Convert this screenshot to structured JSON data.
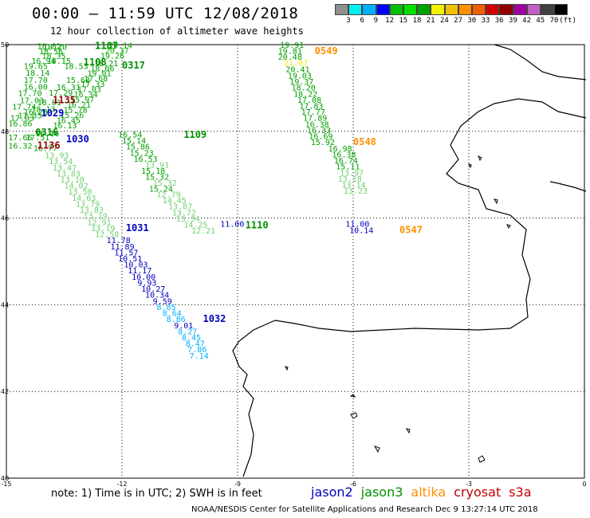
{
  "title": "00:00 – 11:59 UTC 12/08/2018",
  "subtitle": "12 hour collection of altimeter wave heights",
  "scale": {
    "unit": "(ft)",
    "colors": [
      "#909090",
      "#00f0f0",
      "#00b0ff",
      "#0000ff",
      "#00c000",
      "#00e000",
      "#00a000",
      "#f0f000",
      "#f0c000",
      "#ff9000",
      "#f06000",
      "#d00000",
      "#900000",
      "#a000a0",
      "#c060c0",
      "#404040",
      "#000000"
    ],
    "labels": [
      "3",
      "6",
      "9",
      "12",
      "15",
      "18",
      "21",
      "24",
      "27",
      "30",
      "33",
      "36",
      "39",
      "42",
      "45",
      "70"
    ]
  },
  "axes": {
    "x_labels": [
      "-15",
      "-12",
      "-9",
      "-6",
      "-3",
      "0"
    ],
    "y_labels": [
      "50",
      "48",
      "46",
      "44",
      "42",
      "40"
    ],
    "lon_range": [
      -15,
      0
    ],
    "lat_range": [
      40,
      50
    ]
  },
  "tracks": [
    {
      "pass": "1107",
      "pass_color": "#009000",
      "pass_lon": -12.7,
      "pass_lat": 49.9,
      "points": [
        {
          "v": "20.14",
          "lon": -12.35,
          "lat": 49.92,
          "c": "#00b000"
        },
        {
          "v": "20.37",
          "lon": -12.44,
          "lat": 49.8,
          "c": "#00b000"
        },
        {
          "v": "19.26",
          "lon": -12.56,
          "lat": 49.68,
          "c": "#00b000"
        },
        {
          "v": "18.21",
          "lon": -12.72,
          "lat": 49.5,
          "c": "#00a000"
        },
        {
          "v": "18.06",
          "lon": -12.82,
          "lat": 49.38,
          "c": "#00a000"
        },
        {
          "v": "19.01",
          "lon": -12.9,
          "lat": 49.27,
          "c": "#00a000"
        },
        {
          "v": "17.68",
          "lon": -12.99,
          "lat": 49.15,
          "c": "#00a000"
        },
        {
          "v": "17.33",
          "lon": -13.07,
          "lat": 49.03,
          "c": "#00a000"
        },
        {
          "v": "17.03",
          "lon": -13.16,
          "lat": 48.91,
          "c": "#00a000"
        },
        {
          "v": "16.34",
          "lon": -13.25,
          "lat": 48.79,
          "c": "#00a000"
        },
        {
          "v": "15.97",
          "lon": -13.34,
          "lat": 48.67,
          "c": "#00a000"
        },
        {
          "v": "16.21",
          "lon": -13.43,
          "lat": 48.55,
          "c": "#00a000"
        },
        {
          "v": "15.78",
          "lon": -13.52,
          "lat": 48.43,
          "c": "#00a000"
        },
        {
          "v": "15.26",
          "lon": -13.61,
          "lat": 48.31,
          "c": "#00a000"
        },
        {
          "v": "16.45",
          "lon": -13.7,
          "lat": 48.19,
          "c": "#00a000"
        },
        {
          "v": "16.13",
          "lon": -13.79,
          "lat": 48.07,
          "c": "#00a000"
        }
      ]
    },
    {
      "pass": "0317",
      "pass_color": "#009000",
      "pass_lon": -12.0,
      "pass_lat": 49.45,
      "points": [
        {
          "v": "18.82",
          "lon": -14.2,
          "lat": 49.9,
          "c": "#00a000"
        },
        {
          "v": "18.20",
          "lon": -14.05,
          "lat": 49.88,
          "c": "#00a000"
        },
        {
          "v": "18.56",
          "lon": -14.15,
          "lat": 49.78,
          "c": "#00a000"
        },
        {
          "v": "18.35",
          "lon": -14.08,
          "lat": 49.67,
          "c": "#00a000"
        },
        {
          "v": "16.94",
          "lon": -14.35,
          "lat": 49.56,
          "c": "#00a000"
        },
        {
          "v": "18.15",
          "lon": -13.95,
          "lat": 49.56,
          "c": "#00a000"
        },
        {
          "v": "19.65",
          "lon": -14.55,
          "lat": 49.44,
          "c": "#00a000"
        },
        {
          "v": "18.53",
          "lon": -13.5,
          "lat": 49.44,
          "c": "#00a000"
        },
        {
          "v": "18.14",
          "lon": -14.5,
          "lat": 49.28,
          "c": "#00a000"
        },
        {
          "v": "17.70",
          "lon": -14.55,
          "lat": 49.12,
          "c": "#00a000"
        },
        {
          "v": "16.00",
          "lon": -14.55,
          "lat": 48.96,
          "c": "#00a000"
        },
        {
          "v": "17.70",
          "lon": -14.7,
          "lat": 48.81,
          "c": "#00a000"
        },
        {
          "v": "17.03",
          "lon": -14.65,
          "lat": 48.65,
          "c": "#00a000"
        },
        {
          "v": "17.74",
          "lon": -14.85,
          "lat": 48.5,
          "c": "#00a000"
        },
        {
          "v": "16.86",
          "lon": -14.95,
          "lat": 48.12,
          "c": "#00a000"
        },
        {
          "v": "16.32",
          "lon": -14.95,
          "lat": 47.6,
          "c": "#00a000"
        }
      ]
    },
    {
      "pass": "1108",
      "pass_color": "#009000",
      "pass_lon": -13.0,
      "pass_lat": 49.52,
      "points": [
        {
          "v": "15.68",
          "lon": -13.45,
          "lat": 49.12,
          "c": "#00a000"
        },
        {
          "v": "16.31",
          "lon": -13.7,
          "lat": 48.95,
          "c": "#00a000"
        },
        {
          "v": "17.29",
          "lon": -13.9,
          "lat": 48.82,
          "c": "#00a000"
        },
        {
          "v": "18.01",
          "lon": -14.2,
          "lat": 48.6,
          "c": "#00a000"
        },
        {
          "v": "18.13",
          "lon": -14.35,
          "lat": 48.45,
          "c": "#00a000"
        },
        {
          "v": "16.28",
          "lon": -14.55,
          "lat": 48.38,
          "c": "#00a000"
        }
      ]
    },
    {
      "pass": "1109",
      "pass_color": "#009000",
      "pass_lon": -10.4,
      "pass_lat": 47.85,
      "points": [
        {
          "v": "16.54",
          "lon": -12.1,
          "lat": 47.86,
          "c": "#00a000"
        },
        {
          "v": "15.14",
          "lon": -12.0,
          "lat": 47.72,
          "c": "#00a000"
        },
        {
          "v": "15.86",
          "lon": -11.9,
          "lat": 47.58,
          "c": "#00a000"
        },
        {
          "v": "15.23",
          "lon": -11.8,
          "lat": 47.44,
          "c": "#00a000"
        },
        {
          "v": "16.53",
          "lon": -11.7,
          "lat": 47.3,
          "c": "#00a000"
        },
        {
          "v": "13.91",
          "lon": -11.4,
          "lat": 47.16,
          "c": "#70d070"
        },
        {
          "v": "15.18",
          "lon": -11.5,
          "lat": 47.02,
          "c": "#00a000"
        },
        {
          "v": "15.32",
          "lon": -11.4,
          "lat": 46.88,
          "c": "#00a000"
        },
        {
          "v": "15.32",
          "lon": -11.2,
          "lat": 46.75,
          "c": "#70d070"
        },
        {
          "v": "15.24",
          "lon": -11.3,
          "lat": 46.61,
          "c": "#00a000"
        },
        {
          "v": "12.79",
          "lon": -11.1,
          "lat": 46.48,
          "c": "#70d070"
        },
        {
          "v": "14.45",
          "lon": -10.95,
          "lat": 46.34,
          "c": "#70d070"
        },
        {
          "v": "13.87",
          "lon": -10.8,
          "lat": 46.2,
          "c": "#70d070"
        },
        {
          "v": "13.72",
          "lon": -10.7,
          "lat": 46.06,
          "c": "#70d070"
        },
        {
          "v": "13.34",
          "lon": -10.6,
          "lat": 45.92,
          "c": "#70d070"
        },
        {
          "v": "14.25",
          "lon": -10.4,
          "lat": 45.78,
          "c": "#70d070"
        },
        {
          "v": "12.21",
          "lon": -10.2,
          "lat": 45.64,
          "c": "#70d070"
        }
      ]
    },
    {
      "pass": "1110",
      "pass_color": "#009000",
      "pass_lon": -8.8,
      "pass_lat": 45.76,
      "points": []
    },
    {
      "pass": "0549",
      "pass_color": "#ff9000",
      "pass_lon": -7.0,
      "pass_lat": 49.78,
      "points": [
        {
          "v": "19.91",
          "lon": -7.9,
          "lat": 49.93,
          "c": "#00a000"
        },
        {
          "v": "19.81",
          "lon": -7.95,
          "lat": 49.79,
          "c": "#00a000"
        },
        {
          "v": "20.48",
          "lon": -7.95,
          "lat": 49.65,
          "c": "#00a000"
        },
        {
          "v": "21.07",
          "lon": -7.8,
          "lat": 49.51,
          "c": "#f0f000"
        },
        {
          "v": "20.41",
          "lon": -7.75,
          "lat": 49.37,
          "c": "#00a000"
        },
        {
          "v": "19.03",
          "lon": -7.7,
          "lat": 49.22,
          "c": "#00a000"
        },
        {
          "v": "19.37",
          "lon": -7.65,
          "lat": 49.08,
          "c": "#00a000"
        },
        {
          "v": "18.20",
          "lon": -7.6,
          "lat": 48.94,
          "c": "#00a000"
        },
        {
          "v": "18.22",
          "lon": -7.55,
          "lat": 48.8,
          "c": "#00a000"
        },
        {
          "v": "17.08",
          "lon": -7.45,
          "lat": 48.66,
          "c": "#00a000"
        },
        {
          "v": "17.83",
          "lon": -7.4,
          "lat": 48.52,
          "c": "#00a000"
        },
        {
          "v": "17.77",
          "lon": -7.35,
          "lat": 48.38,
          "c": "#00a000"
        },
        {
          "v": "17.89",
          "lon": -7.3,
          "lat": 48.24,
          "c": "#00a000"
        },
        {
          "v": "16.38",
          "lon": -7.25,
          "lat": 48.1,
          "c": "#00a000"
        },
        {
          "v": "16.33",
          "lon": -7.2,
          "lat": 47.96,
          "c": "#00a000"
        },
        {
          "v": "16.69",
          "lon": -7.15,
          "lat": 47.82,
          "c": "#00a000"
        },
        {
          "v": "15.92",
          "lon": -7.1,
          "lat": 47.68,
          "c": "#00a000"
        }
      ]
    },
    {
      "pass": "0548",
      "pass_color": "#ff9000",
      "pass_lon": -6.0,
      "pass_lat": 47.68,
      "points": [
        {
          "v": "16.98",
          "lon": -6.65,
          "lat": 47.54,
          "c": "#00a000"
        },
        {
          "v": "16.38",
          "lon": -6.55,
          "lat": 47.4,
          "c": "#00a000"
        },
        {
          "v": "16.74",
          "lon": -6.5,
          "lat": 47.26,
          "c": "#00a000"
        },
        {
          "v": "15.11",
          "lon": -6.45,
          "lat": 47.12,
          "c": "#00a000"
        },
        {
          "v": "13.97",
          "lon": -6.35,
          "lat": 46.98,
          "c": "#70d070"
        },
        {
          "v": "13.18",
          "lon": -6.4,
          "lat": 46.84,
          "c": "#70d070"
        },
        {
          "v": "13.14",
          "lon": -6.3,
          "lat": 46.7,
          "c": "#70d070"
        },
        {
          "v": "13.23",
          "lon": -6.25,
          "lat": 46.56,
          "c": "#70d070"
        }
      ]
    },
    {
      "pass": "0547",
      "pass_color": "#ff9000",
      "pass_lon": -4.8,
      "pass_lat": 45.65,
      "points": [
        {
          "v": "11.00",
          "lon": -6.2,
          "lat": 45.8,
          "c": "#0000c0"
        },
        {
          "v": "10.14",
          "lon": -6.1,
          "lat": 45.65,
          "c": "#0000c0"
        }
      ]
    },
    {
      "pass": "1029",
      "pass_color": "#0000c0",
      "pass_lon": -14.1,
      "pass_lat": 48.35,
      "points": [
        {
          "v": "17.55",
          "lon": -14.7,
          "lat": 48.3,
          "c": "#00a000"
        },
        {
          "v": "17.03",
          "lon": -14.9,
          "lat": 48.24,
          "c": "#00a000"
        }
      ]
    },
    {
      "pass": "1030",
      "pass_color": "#0000c0",
      "pass_lon": -13.45,
      "pass_lat": 47.75,
      "points": [
        {
          "v": "17.66",
          "lon": -14.95,
          "lat": 47.79,
          "c": "#00a000"
        },
        {
          "v": "17.51",
          "lon": -14.5,
          "lat": 47.79,
          "c": "#00a000"
        },
        {
          "v": "16.77",
          "lon": -14.3,
          "lat": 47.55,
          "c": "#00a000"
        },
        {
          "v": "16.16",
          "lon": -14.25,
          "lat": 47.89,
          "c": "#00a000"
        }
      ]
    },
    {
      "pass": "0316",
      "pass_color": "#009000",
      "pass_lon": -14.25,
      "pass_lat": 47.9,
      "points": []
    },
    {
      "pass": "1135",
      "pass_color": "#900000",
      "pass_lon": -13.8,
      "pass_lat": 48.65,
      "points": []
    },
    {
      "pass": "1136",
      "pass_color": "#900000",
      "pass_lon": -14.2,
      "pass_lat": 47.6,
      "points": [
        {
          "v": "13.93",
          "lon": -14.0,
          "lat": 47.38,
          "c": "#70d070"
        },
        {
          "v": "13.54",
          "lon": -13.9,
          "lat": 47.24,
          "c": "#70d070"
        },
        {
          "v": "13.47",
          "lon": -13.8,
          "lat": 47.1,
          "c": "#70d070"
        },
        {
          "v": "13.83",
          "lon": -13.7,
          "lat": 46.96,
          "c": "#70d070"
        },
        {
          "v": "13.10",
          "lon": -13.6,
          "lat": 46.82,
          "c": "#70d070"
        },
        {
          "v": "14.02",
          "lon": -13.5,
          "lat": 46.68,
          "c": "#70d070"
        },
        {
          "v": "13.50",
          "lon": -13.4,
          "lat": 46.54,
          "c": "#70d070"
        },
        {
          "v": "14.03",
          "lon": -13.3,
          "lat": 46.4,
          "c": "#70d070"
        },
        {
          "v": "13.79",
          "lon": -13.2,
          "lat": 46.26,
          "c": "#70d070"
        },
        {
          "v": "13.83",
          "lon": -13.1,
          "lat": 46.12,
          "c": "#70d070"
        },
        {
          "v": "13.19",
          "lon": -13.0,
          "lat": 45.98,
          "c": "#70d070"
        },
        {
          "v": "12.91",
          "lon": -12.9,
          "lat": 45.84,
          "c": "#70d070"
        },
        {
          "v": "13.19",
          "lon": -12.8,
          "lat": 45.7,
          "c": "#70d070"
        },
        {
          "v": "12.58",
          "lon": -12.7,
          "lat": 45.56,
          "c": "#70d070"
        }
      ]
    },
    {
      "pass": "1031",
      "pass_color": "#0000c0",
      "pass_lon": -11.9,
      "pass_lat": 45.7,
      "points": [
        {
          "v": "11.78",
          "lon": -12.4,
          "lat": 45.42,
          "c": "#0000c0"
        },
        {
          "v": "11.89",
          "lon": -12.3,
          "lat": 45.28,
          "c": "#0000c0"
        },
        {
          "v": "11.57",
          "lon": -12.2,
          "lat": 45.14,
          "c": "#0000c0"
        },
        {
          "v": "10.51",
          "lon": -12.1,
          "lat": 45.0,
          "c": "#0000c0"
        },
        {
          "v": "10.03",
          "lon": -11.95,
          "lat": 44.86,
          "c": "#0000c0"
        },
        {
          "v": "11.17",
          "lon": -11.85,
          "lat": 44.72,
          "c": "#0000c0"
        },
        {
          "v": "10.00",
          "lon": -11.75,
          "lat": 44.58,
          "c": "#0000c0"
        },
        {
          "v": "9.93",
          "lon": -11.6,
          "lat": 44.44,
          "c": "#0000c0"
        },
        {
          "v": "10.27",
          "lon": -11.5,
          "lat": 44.3,
          "c": "#0000c0"
        },
        {
          "v": "10.34",
          "lon": -11.4,
          "lat": 44.16,
          "c": "#0000c0"
        },
        {
          "v": "9.59",
          "lon": -11.2,
          "lat": 44.02,
          "c": "#0000c0"
        },
        {
          "v": "8.85",
          "lon": -11.1,
          "lat": 43.88,
          "c": "#00b0ff"
        },
        {
          "v": "8.64",
          "lon": -10.95,
          "lat": 43.74,
          "c": "#00b0ff"
        },
        {
          "v": "8.86",
          "lon": -10.85,
          "lat": 43.6,
          "c": "#00b0ff"
        },
        {
          "v": "9.01",
          "lon": -10.65,
          "lat": 43.46,
          "c": "#0000c0"
        },
        {
          "v": "8.27",
          "lon": -10.55,
          "lat": 43.32,
          "c": "#00b0ff"
        },
        {
          "v": "8.45",
          "lon": -10.45,
          "lat": 43.18,
          "c": "#00b0ff"
        },
        {
          "v": "8.47",
          "lon": -10.35,
          "lat": 43.04,
          "c": "#00b0ff"
        },
        {
          "v": "7.86",
          "lon": -10.3,
          "lat": 42.9,
          "c": "#00b0ff"
        },
        {
          "v": "7.14",
          "lon": -10.25,
          "lat": 42.76,
          "c": "#00b0ff"
        }
      ]
    },
    {
      "pass": "1032",
      "pass_color": "#0000c0",
      "pass_lon": -9.9,
      "pass_lat": 43.6,
      "points": []
    }
  ],
  "jason_track_extra": [
    {
      "v": "11.00",
      "lon": -9.45,
      "lat": 45.8,
      "c": "#0000c0"
    }
  ],
  "note": "note: 1) Time is in UTC; 2) SWH is in feet",
  "legend": [
    {
      "label": "jason2",
      "color": "#0000c0"
    },
    {
      "label": "jason3",
      "color": "#009000"
    },
    {
      "label": "altika",
      "color": "#ff9000"
    },
    {
      "label": "cryosat",
      "color": "#c00000"
    },
    {
      "label": "s3a",
      "color": "#c00000"
    }
  ],
  "credit": "NOAA/NESDIS Center for Satellite Applications and Research   Dec  9 13:27:14 UTC 2018"
}
